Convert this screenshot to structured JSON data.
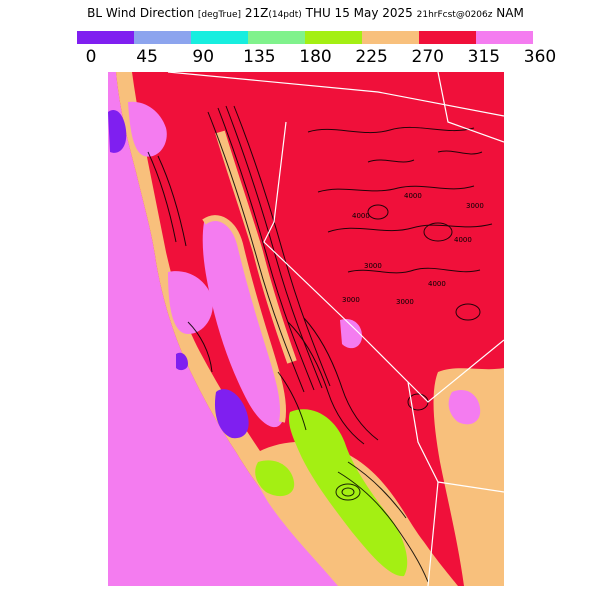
{
  "title": {
    "main": "BL Wind Direction",
    "unit": "[degTrue]",
    "valid": "21Z",
    "local": "(14pdt)",
    "date": "THU 15 May 2025",
    "forecast": "21hrFcst@0206z",
    "model": "NAM"
  },
  "legend": {
    "ticks": [
      "0",
      "45",
      "90",
      "135",
      "180",
      "225",
      "270",
      "315",
      "360"
    ],
    "colors": [
      "#7f1ff0",
      "#8ca4ee",
      "#17eedf",
      "#80f28c",
      "#a4ef13",
      "#f8c07c",
      "#f0103a",
      "#f47cf0"
    ]
  },
  "map_colors": {
    "ocean": "#f47cf0",
    "land_west": "#f0103a",
    "coastal_band": "#f8c07c",
    "valley": "#f47cf0",
    "purple": "#7f1ff0",
    "green": "#a4ef13",
    "teal": "#17eedf"
  },
  "map_labels": [
    "4000",
    "4000",
    "4000",
    "4000",
    "3000",
    "3000",
    "3000",
    "3000"
  ]
}
